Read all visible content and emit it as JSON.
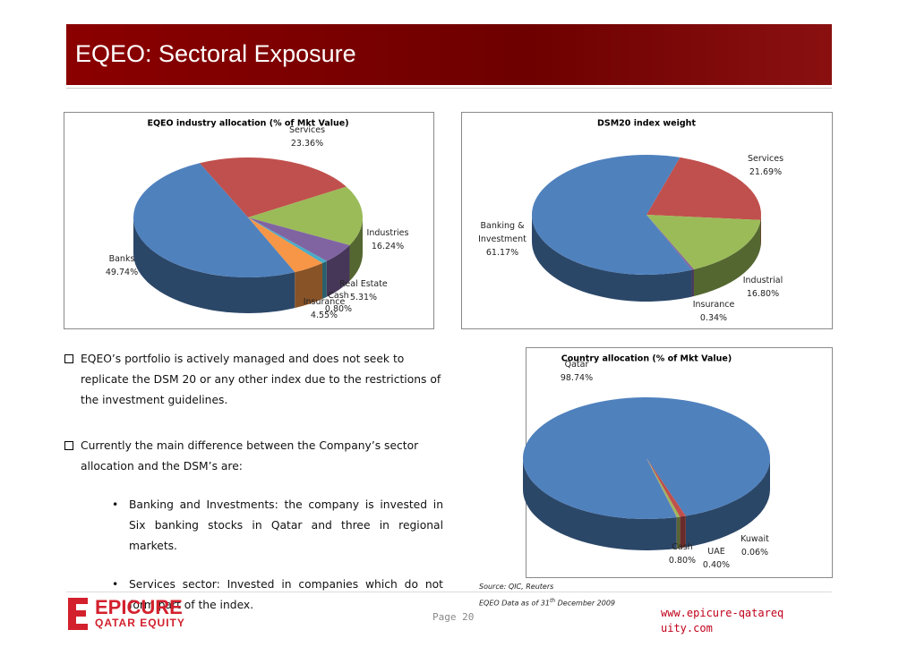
{
  "header": {
    "title": "EQEO: Sectoral Exposure"
  },
  "bullets": [
    {
      "text": "EQEO’s portfolio is actively managed and does not seek to replicate the DSM 20 or any other index due to the restrictions of the investment guidelines."
    },
    {
      "text": "Currently the main difference between the Company’s sector allocation and the DSM’s are:",
      "sub": [
        "Banking and Investments: the company is invested in Six banking stocks in Qatar and three in regional markets.",
        "Services sector: Invested in companies which do not form part of the index."
      ]
    }
  ],
  "chart_data": [
    {
      "type": "pie",
      "title": "EQEO industry allocation (% of Mkt Value)",
      "categories": [
        "Services",
        "Industries",
        "Real Estate",
        "Cash",
        "Insurance",
        "Banks"
      ],
      "values": [
        23.36,
        16.24,
        5.31,
        0.8,
        4.55,
        49.74
      ],
      "value_labels": [
        "23.36%",
        "16.24%",
        "5.31%",
        "0.80%",
        "4.55%",
        "49.74%"
      ],
      "colors": [
        "#c0504d",
        "#9bbb59",
        "#8064a2",
        "#4bacc6",
        "#f79646",
        "#4f81bd"
      ]
    },
    {
      "type": "pie",
      "title": "DSM20 index weight",
      "categories": [
        "Services",
        "Industrial",
        "Insurance",
        "Banking & Investment"
      ],
      "values": [
        21.69,
        16.8,
        0.34,
        61.17
      ],
      "value_labels": [
        "21.69%",
        "16.80%",
        "0.34%",
        "61.17%"
      ],
      "colors": [
        "#c0504d",
        "#9bbb59",
        "#8064a2",
        "#4f81bd"
      ]
    },
    {
      "type": "pie",
      "title": "Country allocation (% of Mkt Value)",
      "categories": [
        "Qatar",
        "Cash",
        "UAE",
        "Kuwait"
      ],
      "values": [
        98.74,
        0.8,
        0.4,
        0.06
      ],
      "value_labels": [
        "98.74%",
        "0.80%",
        "0.40%",
        "0.06%"
      ],
      "colors": [
        "#4f81bd",
        "#c0504d",
        "#9bbb59",
        "#8064a2"
      ]
    }
  ],
  "footer": {
    "source": "Source: QIC, Reuters",
    "data_note": [
      "EQEO Data as of 31",
      "th",
      " December 2009"
    ],
    "page": "Page 20",
    "url": "www.epicure-qatarequity.com",
    "logo": {
      "name": "EPICURE",
      "tagline": "QATAR EQUITY"
    }
  }
}
